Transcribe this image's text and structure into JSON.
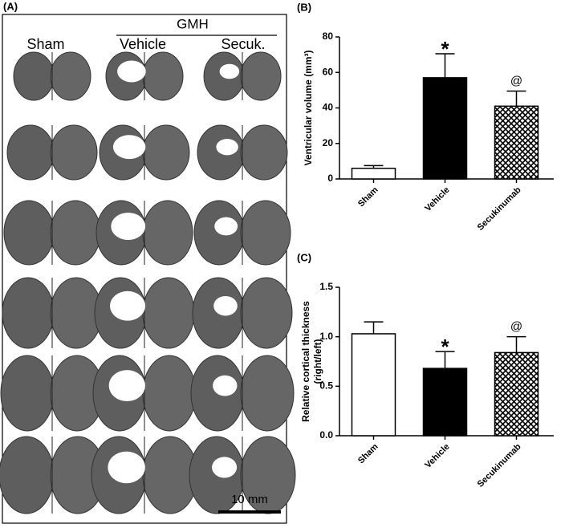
{
  "panel_a": {
    "label": "(A)",
    "group": "GMH",
    "columns": [
      "Sham",
      "Vehicle",
      "Secuk."
    ],
    "scale_bar": "10 mm"
  },
  "chart_data": [
    {
      "type": "bar",
      "label": "(B)",
      "ylabel": "Ventricular volume  (mm³)",
      "categories": [
        "Sham",
        "Vehicle",
        "Secukinumab"
      ],
      "values": [
        6,
        57,
        41
      ],
      "errors": [
        1.5,
        13.5,
        8.5
      ],
      "fills": [
        "#ffffff",
        "#000000",
        "hatch"
      ],
      "annotations": [
        null,
        "*",
        "@"
      ],
      "ylim": [
        0,
        80
      ],
      "yticks": [
        0,
        20,
        40,
        60,
        80
      ]
    },
    {
      "type": "bar",
      "label": "(C)",
      "ylabel": [
        "Relative cortical thickness",
        "(right/left)"
      ],
      "categories": [
        "Sham",
        "Vehicle",
        "Secukinumab"
      ],
      "values": [
        1.03,
        0.68,
        0.84
      ],
      "errors": [
        0.12,
        0.17,
        0.16
      ],
      "fills": [
        "#ffffff",
        "#000000",
        "hatch"
      ],
      "annotations": [
        null,
        "*",
        "@"
      ],
      "ylim": [
        0,
        1.5
      ],
      "yticks": [
        {
          "value": 0,
          "label": "0.0"
        },
        0.5,
        {
          "value": 1,
          "label": "1.0"
        },
        1.5
      ]
    }
  ]
}
